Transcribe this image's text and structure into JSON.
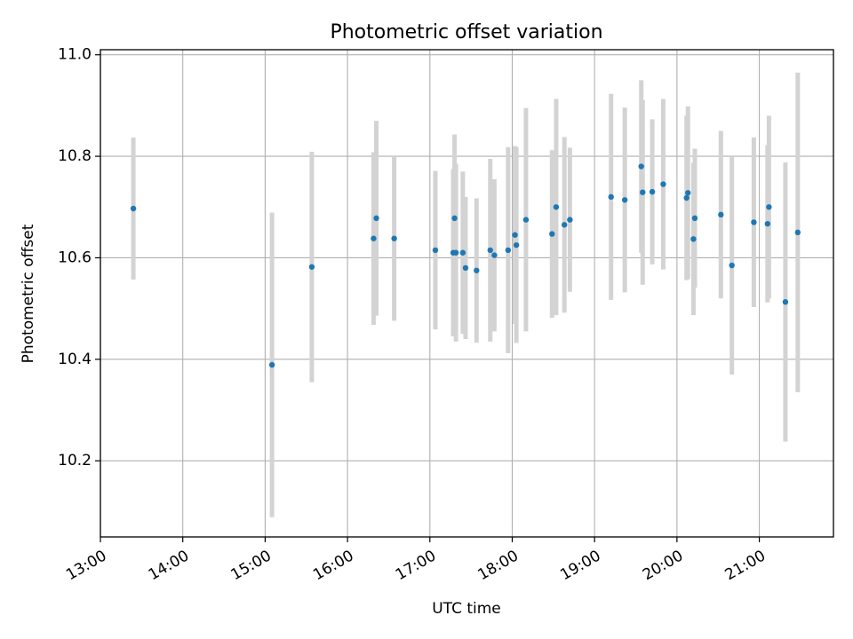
{
  "chart_data": {
    "type": "scatter",
    "title": "Photometric offset variation",
    "xlabel": "UTC time",
    "ylabel": "Photometric offset",
    "x_unit": "hours UTC",
    "xlim": [
      "13:00",
      "21:54"
    ],
    "ylim": [
      10.05,
      11.01
    ],
    "x_ticks": [
      "13:00",
      "14:00",
      "15:00",
      "16:00",
      "17:00",
      "18:00",
      "19:00",
      "20:00",
      "21:00"
    ],
    "y_ticks": [
      "10.2",
      "10.4",
      "10.6",
      "10.8",
      "11.0"
    ],
    "grid": true,
    "colors": {
      "marker": "#1f77b4",
      "errorbar": "#d3d3d3",
      "grid": "#b0b0b0"
    },
    "series": [
      {
        "points": [
          {
            "x": "13:24",
            "y": 10.697,
            "err": 0.14
          },
          {
            "x": "15:05",
            "y": 10.389,
            "err": 0.3
          },
          {
            "x": "15:34",
            "y": 10.582,
            "err": 0.227
          },
          {
            "x": "16:19",
            "y": 10.638,
            "err": 0.17
          },
          {
            "x": "16:21",
            "y": 10.678,
            "err": 0.192
          },
          {
            "x": "16:34",
            "y": 10.638,
            "err": 0.162
          },
          {
            "x": "17:04",
            "y": 10.615,
            "err": 0.156
          },
          {
            "x": "17:17",
            "y": 10.61,
            "err": 0.165
          },
          {
            "x": "17:18",
            "y": 10.678,
            "err": 0.165
          },
          {
            "x": "17:19",
            "y": 10.61,
            "err": 0.175
          },
          {
            "x": "17:24",
            "y": 10.61,
            "err": 0.16
          },
          {
            "x": "17:26",
            "y": 10.58,
            "err": 0.14
          },
          {
            "x": "17:34",
            "y": 10.575,
            "err": 0.142
          },
          {
            "x": "17:44",
            "y": 10.615,
            "err": 0.18
          },
          {
            "x": "17:47",
            "y": 10.605,
            "err": 0.15
          },
          {
            "x": "17:57",
            "y": 10.615,
            "err": 0.203
          },
          {
            "x": "18:02",
            "y": 10.645,
            "err": 0.175
          },
          {
            "x": "18:03",
            "y": 10.625,
            "err": 0.193
          },
          {
            "x": "18:10",
            "y": 10.675,
            "err": 0.22
          },
          {
            "x": "18:29",
            "y": 10.647,
            "err": 0.165
          },
          {
            "x": "18:32",
            "y": 10.7,
            "err": 0.213
          },
          {
            "x": "18:38",
            "y": 10.665,
            "err": 0.173
          },
          {
            "x": "18:42",
            "y": 10.675,
            "err": 0.142
          },
          {
            "x": "19:12",
            "y": 10.72,
            "err": 0.203
          },
          {
            "x": "19:22",
            "y": 10.714,
            "err": 0.182
          },
          {
            "x": "19:34",
            "y": 10.78,
            "err": 0.17
          },
          {
            "x": "19:35",
            "y": 10.729,
            "err": 0.182
          },
          {
            "x": "19:42",
            "y": 10.73,
            "err": 0.143
          },
          {
            "x": "19:50",
            "y": 10.745,
            "err": 0.168
          },
          {
            "x": "20:07",
            "y": 10.718,
            "err": 0.162
          },
          {
            "x": "20:08",
            "y": 10.728,
            "err": 0.17
          },
          {
            "x": "20:12",
            "y": 10.637,
            "err": 0.15
          },
          {
            "x": "20:13",
            "y": 10.678,
            "err": 0.137
          },
          {
            "x": "20:32",
            "y": 10.685,
            "err": 0.165
          },
          {
            "x": "20:40",
            "y": 10.585,
            "err": 0.215
          },
          {
            "x": "20:56",
            "y": 10.67,
            "err": 0.167
          },
          {
            "x": "21:06",
            "y": 10.667,
            "err": 0.155
          },
          {
            "x": "21:07",
            "y": 10.7,
            "err": 0.18
          },
          {
            "x": "21:19",
            "y": 10.513,
            "err": 0.275
          },
          {
            "x": "21:28",
            "y": 10.65,
            "err": 0.315
          }
        ]
      }
    ]
  }
}
